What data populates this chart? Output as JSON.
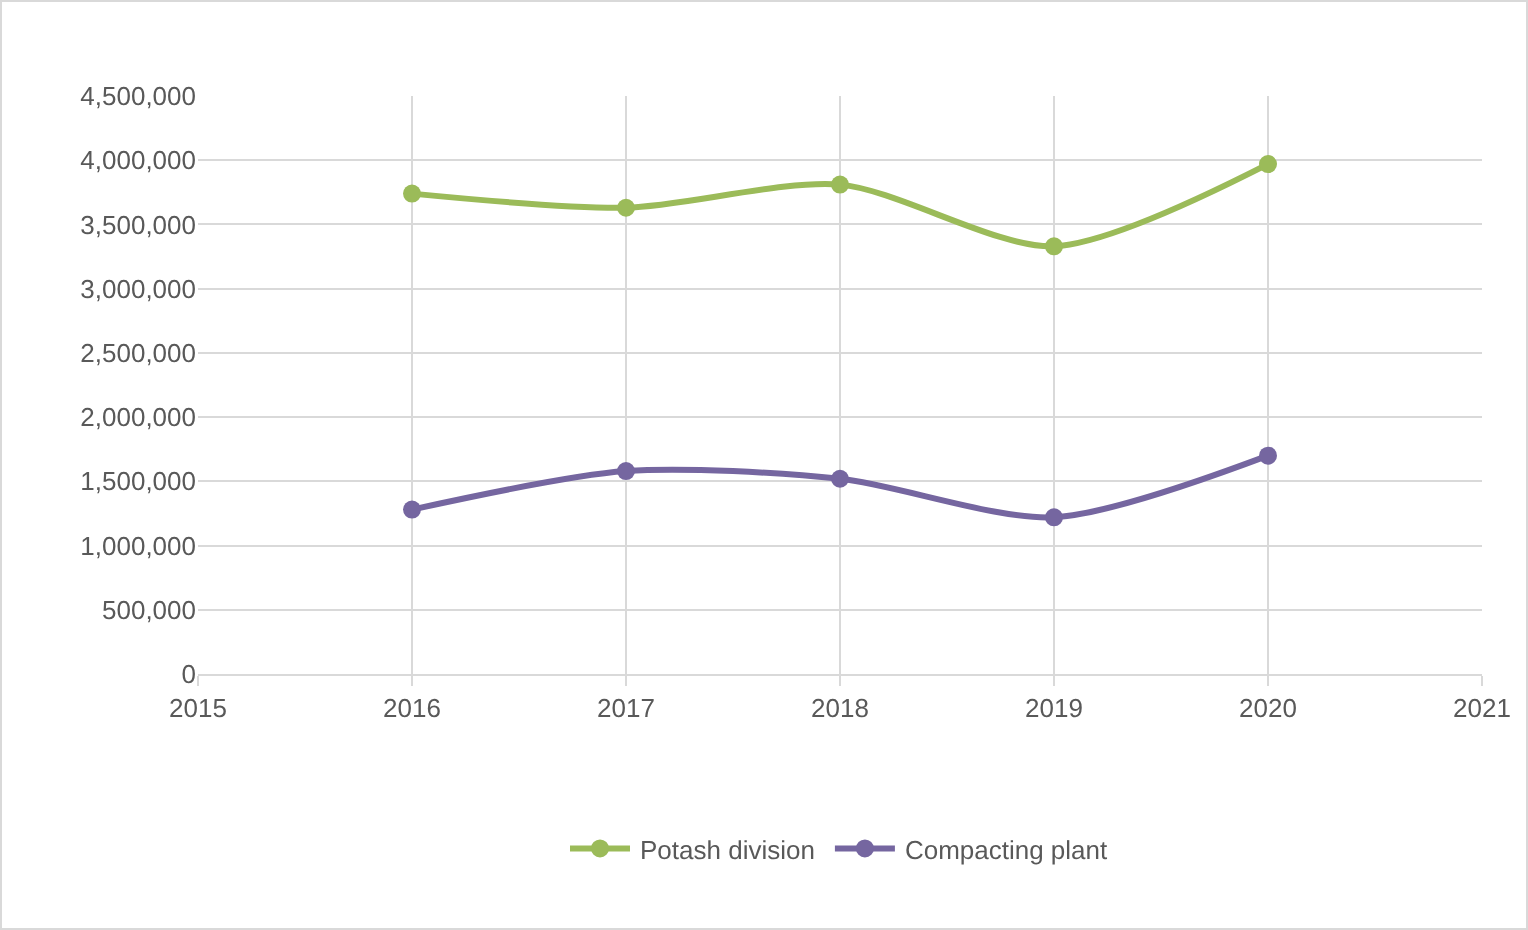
{
  "chart_data": {
    "type": "line",
    "x": [
      2016,
      2017,
      2018,
      2019,
      2020
    ],
    "series": [
      {
        "name": "Potash division",
        "color": "#9bbb59",
        "values": [
          3740000,
          3630000,
          3810000,
          3330000,
          3970000
        ]
      },
      {
        "name": "Compacting plant",
        "color": "#7566a0",
        "values": [
          1280000,
          1580000,
          1520000,
          1220000,
          1700000
        ]
      }
    ],
    "xlim": [
      2015,
      2021
    ],
    "xticks": [
      2015,
      2016,
      2017,
      2018,
      2019,
      2020,
      2021
    ],
    "ylim": [
      0,
      4500000
    ],
    "yticks": [
      {
        "value": 0,
        "label": "0"
      },
      {
        "value": 500000,
        "label": "500,000"
      },
      {
        "value": 1000000,
        "label": "1,000,000"
      },
      {
        "value": 1500000,
        "label": "1,500,000"
      },
      {
        "value": 2000000,
        "label": "2,000,000"
      },
      {
        "value": 2500000,
        "label": "2,500,000"
      },
      {
        "value": 3000000,
        "label": "3,000,000"
      },
      {
        "value": 3500000,
        "label": "3,500,000"
      },
      {
        "value": 4000000,
        "label": "4,000,000"
      },
      {
        "value": 4500000,
        "label": "4,500,000"
      }
    ],
    "grid": true,
    "legend": "bottom",
    "marker": "circle",
    "line_style": "solid"
  }
}
